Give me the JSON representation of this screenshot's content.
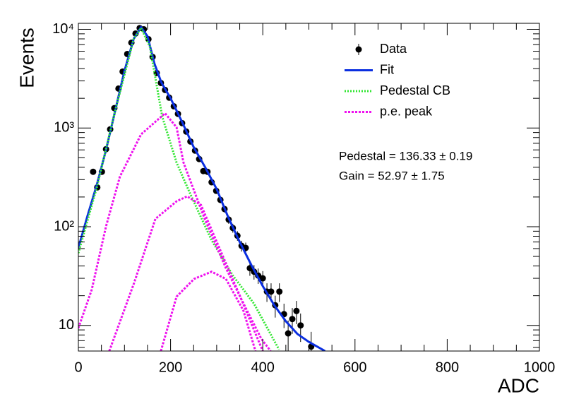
{
  "chart_data": {
    "type": "root-histfit",
    "xlabel": "ADC",
    "ylabel": "Events",
    "xlim": [
      0,
      1000
    ],
    "xticks": [
      0,
      200,
      400,
      600,
      800,
      1000
    ],
    "xminor": [
      50,
      100,
      150,
      250,
      300,
      350,
      450,
      500,
      550,
      650,
      700,
      750,
      850,
      900,
      950
    ],
    "ylim": [
      5.5,
      11500
    ],
    "log_y": true,
    "yticks": [
      10,
      {
        "value": 100,
        "label": "10²"
      },
      {
        "value": 1000,
        "label": "10³"
      },
      {
        "value": 10000,
        "label": "10⁴"
      }
    ],
    "yminor": [
      6,
      7,
      8,
      9,
      20,
      30,
      40,
      50,
      60,
      70,
      80,
      90,
      200,
      300,
      400,
      500,
      600,
      700,
      800,
      900,
      2000,
      3000,
      4000,
      5000,
      6000,
      7000,
      8000,
      9000
    ],
    "legend": "top-right",
    "annotations": [
      "Pedestal = 136.33 ± 0.19",
      "Gain = 52.97 ± 1.75"
    ],
    "series": [
      {
        "name": "Data",
        "kind": "points",
        "color": "#000000",
        "x": [
          32,
          41,
          51,
          60,
          69,
          78,
          87,
          96,
          106,
          115,
          124,
          133,
          142,
          152,
          161,
          170,
          179,
          188,
          197,
          207,
          216,
          225,
          234,
          243,
          253,
          262,
          271,
          280,
          289,
          299,
          308,
          317,
          326,
          335,
          345,
          354,
          363,
          372,
          381,
          390,
          400,
          409,
          418,
          427,
          436,
          446,
          455,
          464,
          473,
          482,
          505
        ],
        "values": [
          360,
          250,
          360,
          610,
          970,
          1590,
          2510,
          3730,
          5620,
          7310,
          9060,
          10300,
          10000,
          7940,
          5250,
          3610,
          2860,
          2430,
          2030,
          1660,
          1390,
          1120,
          920,
          730,
          590,
          485,
          366,
          360,
          282,
          231,
          187,
          151,
          118,
          97,
          81,
          64,
          61,
          38,
          35,
          32,
          30,
          22,
          22,
          16,
          22,
          13,
          8.3,
          11.6,
          14,
          10,
          6.1
        ],
        "errors": [
          19,
          16,
          19,
          25,
          31,
          40,
          50,
          61,
          75,
          85,
          95,
          101,
          100,
          89,
          72,
          60,
          53,
          49,
          45,
          41,
          37,
          33,
          30,
          27,
          24,
          22,
          19,
          19,
          17,
          15,
          14,
          12,
          11,
          10,
          9,
          8,
          8,
          6.2,
          5.9,
          5.7,
          5.5,
          4.7,
          4.7,
          4,
          4.7,
          3.6,
          2.9,
          3.4,
          3.7,
          3.2,
          2.5
        ]
      },
      {
        "name": "Fit",
        "kind": "solid",
        "color": "#0a2ee0",
        "x": [
          0,
          20,
          40,
          60,
          80,
          100,
          120,
          136,
          150,
          165,
          180,
          200,
          225,
          250,
          275,
          300,
          325,
          350,
          375,
          400,
          425,
          450,
          475,
          500,
          535
        ],
        "values": [
          61,
          130,
          265,
          600,
          1500,
          3800,
          8000,
          10500,
          8500,
          4500,
          2900,
          2000,
          1150,
          640,
          400,
          240,
          125,
          70,
          41,
          25,
          16,
          11,
          8.2,
          6.8,
          5.5
        ]
      },
      {
        "name": "Pedestal CB",
        "kind": "dotted",
        "color": "#33e633",
        "x": [
          0,
          40,
          80,
          120,
          136,
          155,
          182,
          213,
          243,
          289,
          335,
          381,
          435
        ],
        "values": [
          54,
          250,
          1500,
          8000,
          10300,
          6700,
          1300,
          446,
          213,
          73,
          32,
          16.6,
          5.7
        ]
      },
      {
        "name": "p.e. peak",
        "kind": "dashed",
        "color": "#ee11ee",
        "pieces": [
          {
            "x": [
              0,
              29,
              60,
              90,
              136,
              188,
              213,
              228,
              274,
              320,
              366,
              397,
              417
            ],
            "values": [
              9.4,
              23,
              101,
              321,
              863,
              1410,
              1016,
              446,
              120,
              38,
              14.1,
              7.3,
              5.5
            ]
          },
          {
            "x": [
              67,
              121,
              167,
              213,
              236,
              266,
              305,
              351,
              389,
              400
            ],
            "values": [
              5.5,
              27,
              120,
              181,
              203,
              166,
              62,
              19.6,
              7.3,
              5.5
            ]
          },
          {
            "x": [
              179,
              213,
              251,
              289,
              320,
              358,
              384
            ],
            "values": [
              5.5,
              19.6,
              29.6,
              35,
              29.6,
              14.1,
              5.5
            ]
          }
        ]
      }
    ]
  }
}
